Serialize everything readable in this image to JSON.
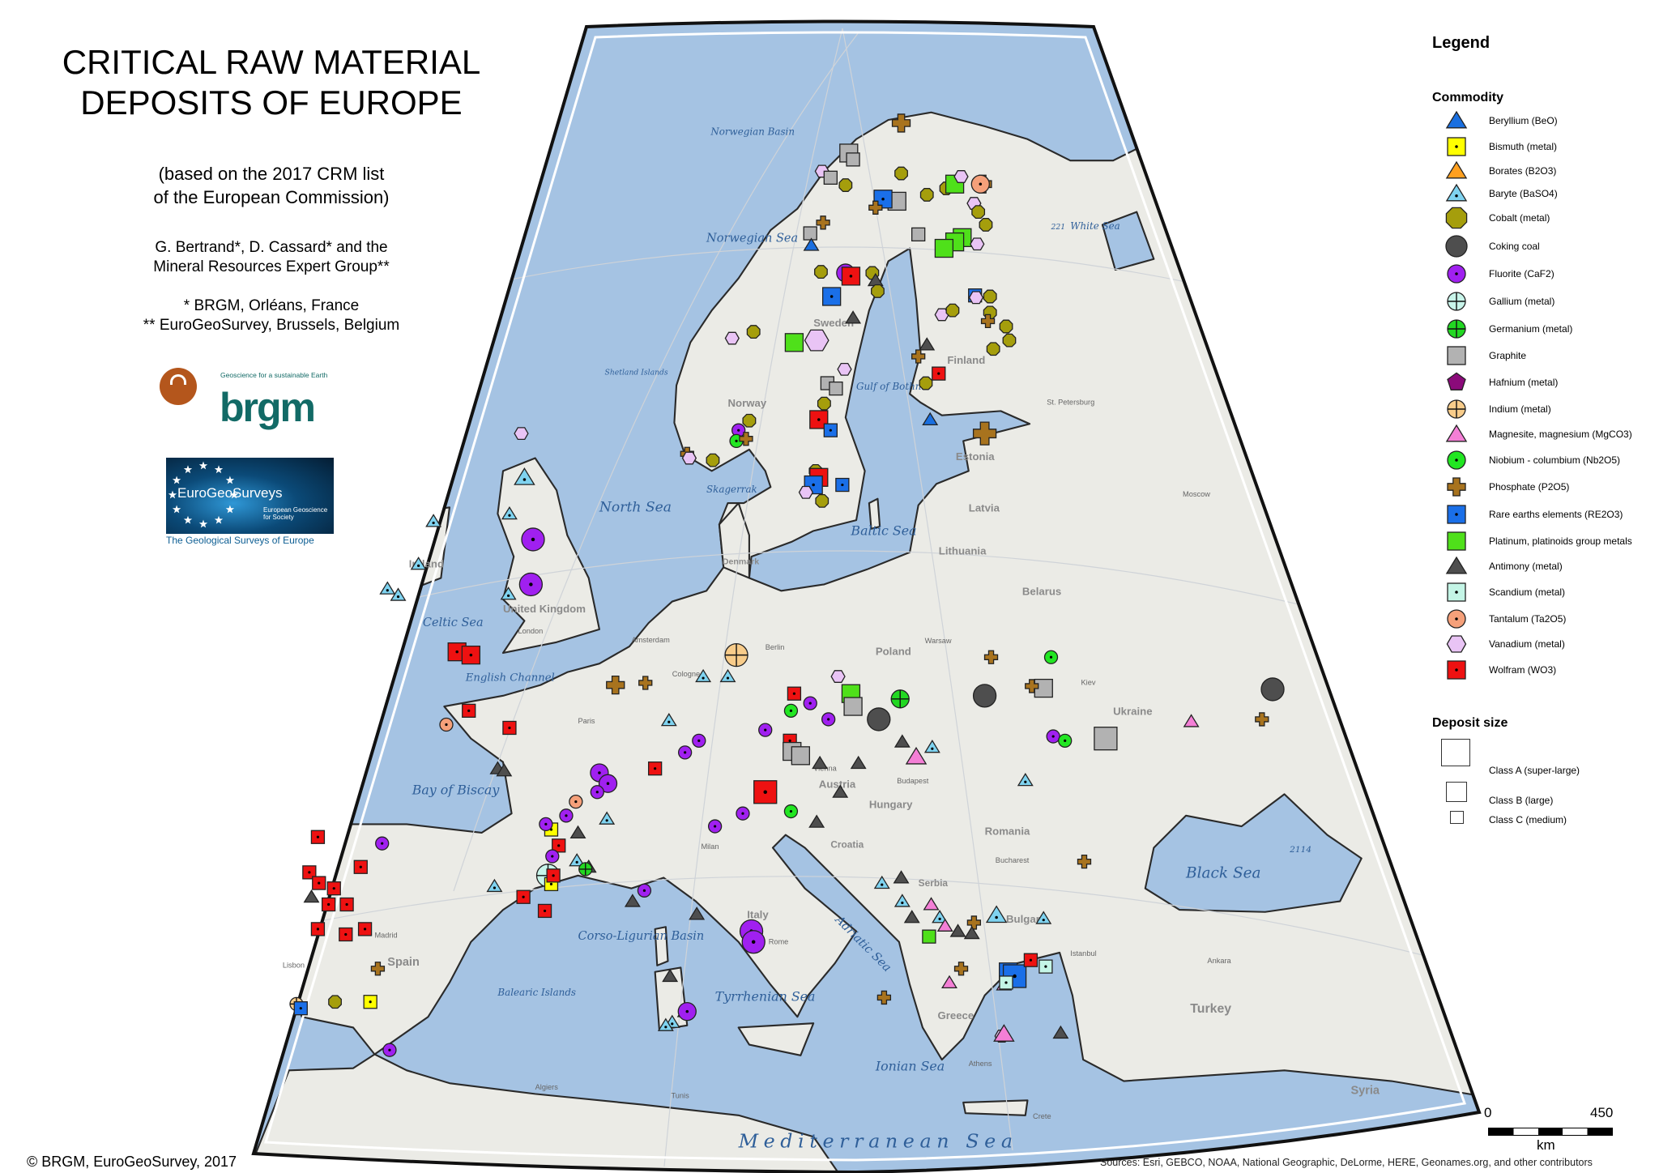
{
  "header": {
    "title_line1": "CRITICAL RAW MATERIAL",
    "title_line2": "DEPOSITS OF EUROPE",
    "subtitle_line1": "(based on the 2017 CRM list",
    "subtitle_line2": "of the European Commission)",
    "authors_line1": "G. Bertrand*, D. Cassard* and the",
    "authors_line2": "Mineral Resources Expert Group**",
    "affil_line1": "* BRGM, Orléans, France",
    "affil_line2": "** EuroGeoSurvey, Brussels, Belgium"
  },
  "logos": {
    "brgm_text": "brgm",
    "brgm_tagline": "Geoscience for a sustainable Earth",
    "egs_name": "EuroGeoSurveys",
    "egs_tagline": "European Geoscience for Society",
    "egs_caption": "The Geological Surveys of Europe"
  },
  "legend": {
    "title": "Legend",
    "commodity_title": "Commodity",
    "commodities": [
      {
        "key": "be",
        "label": "Beryllium (BeO)",
        "shape": "triangle",
        "color": "#1a6fe0"
      },
      {
        "key": "bi",
        "label": "Bismuth (metal)",
        "shape": "square-dot",
        "color": "#ffff00"
      },
      {
        "key": "bo",
        "label": "Borates (B2O3)",
        "shape": "triangle",
        "color": "#ffa020"
      },
      {
        "key": "ba",
        "label": "Baryte (BaSO4)",
        "shape": "triangle-dot",
        "color": "#7fd3f0"
      },
      {
        "key": "co",
        "label": "Cobalt (metal)",
        "shape": "octagon",
        "color": "#a59e0c"
      },
      {
        "key": "cc",
        "label": "Coking coal",
        "shape": "circle",
        "color": "#4e4e4e"
      },
      {
        "key": "fl",
        "label": "Fluorite (CaF2)",
        "shape": "circle-dot",
        "color": "#a020f0"
      },
      {
        "key": "ga",
        "label": "Gallium (metal)",
        "shape": "circle-cross",
        "color": "#c8f5ea"
      },
      {
        "key": "ge",
        "label": "Germanium (metal)",
        "shape": "circle-cross",
        "color": "#22d822"
      },
      {
        "key": "gr",
        "label": "Graphite",
        "shape": "square",
        "color": "#b2b2b2"
      },
      {
        "key": "hf",
        "label": "Hafnium (metal)",
        "shape": "pentagon",
        "color": "#8b0a7a"
      },
      {
        "key": "in",
        "label": "Indium (metal)",
        "shape": "circle-cross",
        "color": "#f8cc8a"
      },
      {
        "key": "mg",
        "label": "Magnesite, magnesium (MgCO3)",
        "shape": "triangle",
        "color": "#f47fd6"
      },
      {
        "key": "nb",
        "label": "Niobium - columbium (Nb2O5)",
        "shape": "circle-dot",
        "color": "#22e622"
      },
      {
        "key": "ph",
        "label": "Phosphate (P2O5)",
        "shape": "cross",
        "color": "#a8731e"
      },
      {
        "key": "ree",
        "label": "Rare earths elements (RE2O3)",
        "shape": "square-dot",
        "color": "#1a6fe8"
      },
      {
        "key": "pt",
        "label": "Platinum, platinoids group metals",
        "shape": "square",
        "color": "#4fe01a"
      },
      {
        "key": "sb",
        "label": "Antimony (metal)",
        "shape": "triangle",
        "color": "#4e4e4e"
      },
      {
        "key": "sc",
        "label": "Scandium (metal)",
        "shape": "square-dot",
        "color": "#c4f5e6"
      },
      {
        "key": "ta",
        "label": "Tantalum (Ta2O5)",
        "shape": "circle-dot",
        "color": "#f5a07a"
      },
      {
        "key": "va",
        "label": "Vanadium (metal)",
        "shape": "hexagon",
        "color": "#e9c4f5"
      },
      {
        "key": "w",
        "label": "Wolfram (WO3)",
        "shape": "square-dot",
        "color": "#ee1111"
      }
    ],
    "deposit_title": "Deposit size",
    "sizes": [
      {
        "label": "Class A (super-large)"
      },
      {
        "label": "Class B (large)"
      },
      {
        "label": "Class C (medium)"
      }
    ]
  },
  "map": {
    "colors": {
      "sea": "#a5c3e3",
      "land": "#ebebe6",
      "border": "#2a2a2a"
    },
    "sea_labels": [
      "Norwegian Basin",
      "Norwegian Sea",
      "White Sea",
      "North Sea",
      "Baltic Sea",
      "Celtic Sea",
      "English Channel",
      "Bay of Biscay",
      "Gulf of Bothnia",
      "Skagerrak",
      "Black Sea",
      "Adriatic Sea",
      "Tyrrhenian Sea",
      "Ionian Sea",
      "Mediterranean Sea",
      "Corso-Ligurian Basin",
      "Balearic Islands",
      "Shetland Islands"
    ],
    "country_labels": [
      "Norway",
      "Sweden",
      "Finland",
      "Estonia",
      "Latvia",
      "Lithuania",
      "Belarus",
      "Poland",
      "Ukraine",
      "United Kingdom",
      "Ireland",
      "Spain",
      "Italy",
      "Austria",
      "Hungary",
      "Romania",
      "Croatia",
      "Serbia",
      "Bulgaria",
      "Greece",
      "Turkey",
      "Syria",
      "Denmark"
    ],
    "city_labels": [
      "London",
      "Paris",
      "Madrid",
      "Lisbon",
      "Rome",
      "Milan",
      "Vienna",
      "Budapest",
      "Bucharest",
      "Athens",
      "Istanbul",
      "Ankara",
      "Tunis",
      "Algiers",
      "Berlin",
      "Warsaw",
      "Kiev",
      "Moscow",
      "St. Petersburg",
      "Amsterdam",
      "Cologne",
      "Crete"
    ],
    "depth_labels": [
      "2114",
      "221"
    ]
  },
  "scalebar": {
    "start": "0",
    "end": "450",
    "unit": "km"
  },
  "footer": {
    "copyright": "© BRGM, EuroGeoSurvey, 2017",
    "sources": "Sources: Esri, GEBCO, NOAA, National Geographic, DeLorme, HERE, Geonames.org, and other contributors"
  }
}
